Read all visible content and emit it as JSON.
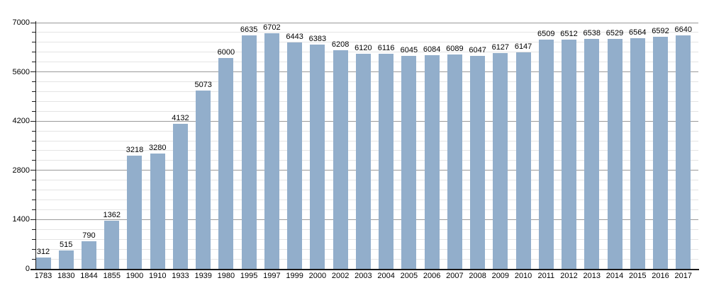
{
  "chart_data": {
    "type": "bar",
    "title": "",
    "categories": [
      "1783",
      "1830",
      "1844",
      "1855",
      "1900",
      "1910",
      "1933",
      "1939",
      "1980",
      "1995",
      "1997",
      "1999",
      "2000",
      "2002",
      "2003",
      "2004",
      "2005",
      "2006",
      "2007",
      "2008",
      "2009",
      "2010",
      "2011",
      "2012",
      "2013",
      "2014",
      "2015",
      "2016",
      "2017"
    ],
    "values": [
      312,
      515,
      790,
      1362,
      3218,
      3280,
      4132,
      5073,
      6000,
      6635,
      6702,
      6443,
      6383,
      6208,
      6120,
      6116,
      6045,
      6084,
      6089,
      6047,
      6127,
      6147,
      6509,
      6512,
      6538,
      6529,
      6564,
      6592,
      6640
    ],
    "xlabel": "",
    "ylabel": "",
    "ylim": [
      0,
      7000
    ],
    "yticks": [
      0,
      1400,
      2800,
      4200,
      5600,
      7000
    ],
    "minor_tick_step": 280,
    "grid": true,
    "value_labels": true,
    "legend_position": "none",
    "colors": {
      "bar": "#92aecb",
      "major_grid": "#9a9a9a",
      "minor_grid": "#e4e4e4",
      "axis": "#1a1a1a",
      "text": "#000000",
      "background": "#ffffff"
    }
  }
}
